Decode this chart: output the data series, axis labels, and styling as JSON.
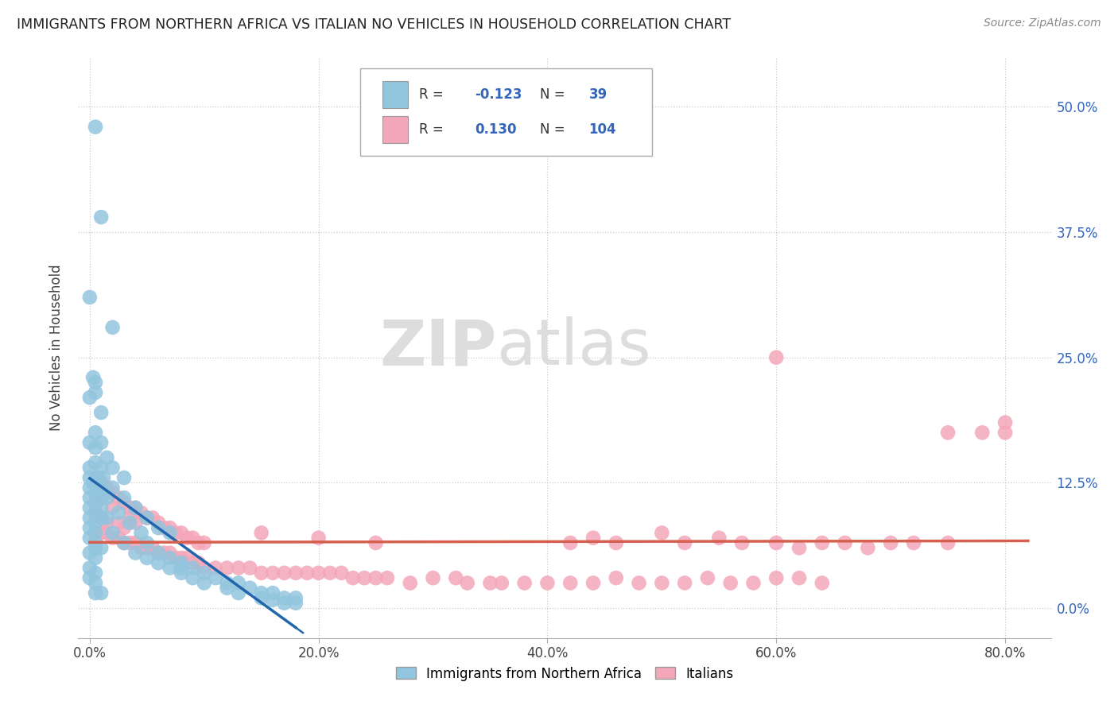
{
  "title": "IMMIGRANTS FROM NORTHERN AFRICA VS ITALIAN NO VEHICLES IN HOUSEHOLD CORRELATION CHART",
  "source": "Source: ZipAtlas.com",
  "xlabel_ticks": [
    "0.0%",
    "20.0%",
    "40.0%",
    "60.0%",
    "80.0%"
  ],
  "xlabel_tick_vals": [
    0.0,
    0.2,
    0.4,
    0.6,
    0.8
  ],
  "ylabel_ticks": [
    "0.0%",
    "12.5%",
    "25.0%",
    "37.5%",
    "50.0%"
  ],
  "ylabel_tick_vals": [
    0.0,
    0.125,
    0.25,
    0.375,
    0.5
  ],
  "ylabel_label": "No Vehicles in Household",
  "xlim": [
    -0.01,
    0.84
  ],
  "ylim": [
    -0.03,
    0.55
  ],
  "blue_color": "#92c5de",
  "pink_color": "#f4a7b9",
  "blue_line_color": "#2166ac",
  "pink_line_color": "#d6604d",
  "blue_scatter": [
    [
      0.005,
      0.48
    ],
    [
      0.01,
      0.39
    ],
    [
      0.0,
      0.31
    ],
    [
      0.005,
      0.225
    ],
    [
      0.02,
      0.28
    ],
    [
      0.0,
      0.21
    ],
    [
      0.005,
      0.215
    ],
    [
      0.003,
      0.23
    ],
    [
      0.005,
      0.175
    ],
    [
      0.01,
      0.195
    ],
    [
      0.0,
      0.165
    ],
    [
      0.005,
      0.16
    ],
    [
      0.01,
      0.165
    ],
    [
      0.0,
      0.14
    ],
    [
      0.005,
      0.145
    ],
    [
      0.01,
      0.14
    ],
    [
      0.015,
      0.15
    ],
    [
      0.0,
      0.13
    ],
    [
      0.003,
      0.125
    ],
    [
      0.007,
      0.13
    ],
    [
      0.012,
      0.13
    ],
    [
      0.0,
      0.12
    ],
    [
      0.005,
      0.115
    ],
    [
      0.01,
      0.12
    ],
    [
      0.0,
      0.11
    ],
    [
      0.005,
      0.105
    ],
    [
      0.01,
      0.11
    ],
    [
      0.015,
      0.11
    ],
    [
      0.0,
      0.1
    ],
    [
      0.005,
      0.095
    ],
    [
      0.01,
      0.1
    ],
    [
      0.0,
      0.09
    ],
    [
      0.005,
      0.085
    ],
    [
      0.01,
      0.09
    ],
    [
      0.015,
      0.09
    ],
    [
      0.0,
      0.08
    ],
    [
      0.005,
      0.075
    ],
    [
      0.0,
      0.07
    ],
    [
      0.005,
      0.065
    ],
    [
      0.005,
      0.06
    ],
    [
      0.01,
      0.06
    ],
    [
      0.0,
      0.055
    ],
    [
      0.005,
      0.05
    ],
    [
      0.0,
      0.04
    ],
    [
      0.005,
      0.035
    ],
    [
      0.0,
      0.03
    ],
    [
      0.005,
      0.025
    ],
    [
      0.005,
      0.015
    ],
    [
      0.01,
      0.015
    ],
    [
      0.13,
      0.025
    ],
    [
      0.16,
      0.015
    ],
    [
      0.05,
      0.065
    ],
    [
      0.08,
      0.04
    ],
    [
      0.02,
      0.12
    ],
    [
      0.03,
      0.11
    ],
    [
      0.04,
      0.1
    ],
    [
      0.05,
      0.09
    ],
    [
      0.06,
      0.08
    ],
    [
      0.07,
      0.075
    ],
    [
      0.025,
      0.095
    ],
    [
      0.035,
      0.085
    ],
    [
      0.045,
      0.075
    ],
    [
      0.06,
      0.055
    ],
    [
      0.07,
      0.05
    ],
    [
      0.08,
      0.045
    ],
    [
      0.09,
      0.04
    ],
    [
      0.1,
      0.035
    ],
    [
      0.11,
      0.03
    ],
    [
      0.12,
      0.025
    ],
    [
      0.14,
      0.02
    ],
    [
      0.15,
      0.015
    ],
    [
      0.17,
      0.01
    ],
    [
      0.02,
      0.14
    ],
    [
      0.03,
      0.13
    ],
    [
      0.02,
      0.075
    ],
    [
      0.03,
      0.065
    ],
    [
      0.04,
      0.055
    ],
    [
      0.05,
      0.05
    ],
    [
      0.06,
      0.045
    ],
    [
      0.07,
      0.04
    ],
    [
      0.08,
      0.035
    ],
    [
      0.09,
      0.03
    ],
    [
      0.1,
      0.025
    ],
    [
      0.12,
      0.02
    ],
    [
      0.13,
      0.015
    ],
    [
      0.15,
      0.01
    ],
    [
      0.16,
      0.008
    ],
    [
      0.17,
      0.005
    ],
    [
      0.18,
      0.005
    ],
    [
      0.18,
      0.01
    ]
  ],
  "pink_scatter": [
    [
      0.005,
      0.095
    ],
    [
      0.01,
      0.09
    ],
    [
      0.015,
      0.085
    ],
    [
      0.02,
      0.1
    ],
    [
      0.025,
      0.085
    ],
    [
      0.03,
      0.08
    ],
    [
      0.035,
      0.09
    ],
    [
      0.04,
      0.085
    ],
    [
      0.005,
      0.125
    ],
    [
      0.01,
      0.125
    ],
    [
      0.015,
      0.12
    ],
    [
      0.02,
      0.115
    ],
    [
      0.025,
      0.11
    ],
    [
      0.03,
      0.105
    ],
    [
      0.035,
      0.1
    ],
    [
      0.04,
      0.1
    ],
    [
      0.045,
      0.095
    ],
    [
      0.05,
      0.09
    ],
    [
      0.055,
      0.09
    ],
    [
      0.06,
      0.085
    ],
    [
      0.065,
      0.08
    ],
    [
      0.07,
      0.08
    ],
    [
      0.075,
      0.075
    ],
    [
      0.08,
      0.075
    ],
    [
      0.085,
      0.07
    ],
    [
      0.09,
      0.07
    ],
    [
      0.095,
      0.065
    ],
    [
      0.1,
      0.065
    ],
    [
      0.005,
      0.075
    ],
    [
      0.01,
      0.075
    ],
    [
      0.015,
      0.075
    ],
    [
      0.02,
      0.07
    ],
    [
      0.025,
      0.07
    ],
    [
      0.03,
      0.065
    ],
    [
      0.035,
      0.065
    ],
    [
      0.04,
      0.065
    ],
    [
      0.045,
      0.06
    ],
    [
      0.05,
      0.06
    ],
    [
      0.055,
      0.06
    ],
    [
      0.06,
      0.055
    ],
    [
      0.065,
      0.055
    ],
    [
      0.07,
      0.055
    ],
    [
      0.075,
      0.05
    ],
    [
      0.08,
      0.05
    ],
    [
      0.085,
      0.05
    ],
    [
      0.09,
      0.045
    ],
    [
      0.095,
      0.045
    ],
    [
      0.1,
      0.04
    ],
    [
      0.11,
      0.04
    ],
    [
      0.12,
      0.04
    ],
    [
      0.13,
      0.04
    ],
    [
      0.14,
      0.04
    ],
    [
      0.15,
      0.035
    ],
    [
      0.16,
      0.035
    ],
    [
      0.17,
      0.035
    ],
    [
      0.18,
      0.035
    ],
    [
      0.19,
      0.035
    ],
    [
      0.2,
      0.035
    ],
    [
      0.21,
      0.035
    ],
    [
      0.22,
      0.035
    ],
    [
      0.23,
      0.03
    ],
    [
      0.24,
      0.03
    ],
    [
      0.25,
      0.03
    ],
    [
      0.26,
      0.03
    ],
    [
      0.28,
      0.025
    ],
    [
      0.3,
      0.03
    ],
    [
      0.32,
      0.03
    ],
    [
      0.33,
      0.025
    ],
    [
      0.35,
      0.025
    ],
    [
      0.36,
      0.025
    ],
    [
      0.38,
      0.025
    ],
    [
      0.4,
      0.025
    ],
    [
      0.42,
      0.025
    ],
    [
      0.44,
      0.025
    ],
    [
      0.46,
      0.03
    ],
    [
      0.48,
      0.025
    ],
    [
      0.5,
      0.025
    ],
    [
      0.52,
      0.025
    ],
    [
      0.54,
      0.03
    ],
    [
      0.56,
      0.025
    ],
    [
      0.58,
      0.025
    ],
    [
      0.6,
      0.03
    ],
    [
      0.62,
      0.03
    ],
    [
      0.64,
      0.025
    ],
    [
      0.42,
      0.065
    ],
    [
      0.44,
      0.07
    ],
    [
      0.46,
      0.065
    ],
    [
      0.5,
      0.075
    ],
    [
      0.52,
      0.065
    ],
    [
      0.55,
      0.07
    ],
    [
      0.57,
      0.065
    ],
    [
      0.6,
      0.065
    ],
    [
      0.62,
      0.06
    ],
    [
      0.64,
      0.065
    ],
    [
      0.66,
      0.065
    ],
    [
      0.68,
      0.06
    ],
    [
      0.7,
      0.065
    ],
    [
      0.72,
      0.065
    ],
    [
      0.75,
      0.065
    ],
    [
      0.6,
      0.25
    ],
    [
      0.75,
      0.175
    ],
    [
      0.78,
      0.175
    ],
    [
      0.8,
      0.175
    ],
    [
      0.8,
      0.185
    ],
    [
      0.005,
      0.105
    ],
    [
      0.01,
      0.11
    ],
    [
      0.15,
      0.075
    ],
    [
      0.2,
      0.07
    ],
    [
      0.25,
      0.065
    ]
  ]
}
